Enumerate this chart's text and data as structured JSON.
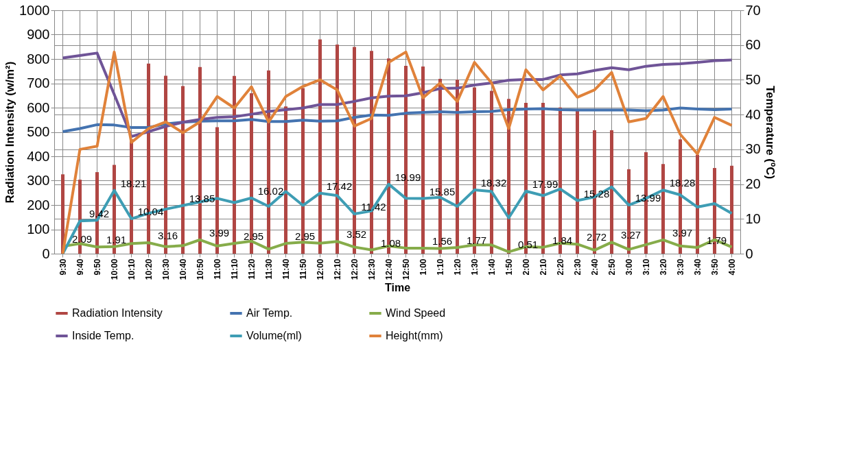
{
  "chart_data": {
    "type": "bar",
    "xlabel": "Time",
    "ylabel": "Radiation Intensity (w/m²)",
    "y2label": "Temperature (ºC)",
    "categories": [
      "9:30",
      "9:40",
      "9:50",
      "10:00",
      "10:10",
      "10:20",
      "10:30",
      "10:40",
      "10:50",
      "11:00",
      "11:10",
      "11:20",
      "11:30",
      "11:40",
      "11:50",
      "12:00",
      "12:10",
      "12:20",
      "12:30",
      "12:40",
      "12:50",
      "1:00",
      "1:10",
      "1:20",
      "1:30",
      "1:40",
      "1:50",
      "2:00",
      "2:10",
      "2:20",
      "2:30",
      "2:40",
      "2:50",
      "3:00",
      "3:10",
      "3:20",
      "3:30",
      "3:40",
      "3:50",
      "4:00"
    ],
    "ylim": [
      0,
      1000
    ],
    "yticks": [
      0,
      100,
      200,
      300,
      400,
      500,
      600,
      700,
      800,
      900,
      1000
    ],
    "y2lim": [
      0,
      70
    ],
    "y2ticks": [
      0,
      10,
      20,
      30,
      40,
      50,
      60,
      70
    ],
    "grid": true,
    "legend": "bottom",
    "series": [
      {
        "name": "Radiation Intensity",
        "type": "bar",
        "color": "#b04643",
        "values": [
          326,
          304,
          335,
          365,
          470,
          781,
          731,
          689,
          767,
          520,
          730,
          659,
          753,
          605,
          680,
          880,
          859,
          849,
          833,
          802,
          772,
          769,
          718,
          715,
          683,
          669,
          636,
          620,
          620,
          601,
          589,
          507,
          507,
          347,
          417,
          368,
          470,
          406,
          352,
          361
        ]
      },
      {
        "name": "Air Temp.",
        "type": "line",
        "axis": "y2",
        "color": "#4473b0",
        "values": [
          35.1,
          36.0,
          37.1,
          37.0,
          36.3,
          36.3,
          37.3,
          37.8,
          38.1,
          38.2,
          38.2,
          38.6,
          38.0,
          38.0,
          38.4,
          38.1,
          38.2,
          39.2,
          39.9,
          39.8,
          40.4,
          40.6,
          40.8,
          40.6,
          40.8,
          40.9,
          41.4,
          41.6,
          41.7,
          41.4,
          41.3,
          41.3,
          41.3,
          41.3,
          41.1,
          41.3,
          41.9,
          41.6,
          41.4,
          41.6
        ]
      },
      {
        "name": "Wind Speed",
        "type": "line",
        "axis": "y2",
        "color": "#86ac4a",
        "values": [
          2.09,
          2.9,
          1.91,
          2.0,
          2.9,
          3.16,
          2.0,
          2.3,
          3.99,
          2.2,
          2.95,
          3.6,
          1.3,
          2.95,
          3.3,
          3.0,
          3.52,
          1.9,
          1.08,
          2.2,
          1.6,
          1.56,
          1.5,
          1.77,
          2.5,
          2.5,
          0.51,
          2.0,
          1.84,
          3.0,
          2.72,
          1.0,
          3.27,
          1.2,
          2.6,
          3.97,
          2.2,
          1.79,
          4.0,
          1.9
        ],
        "value_labels": [
          "2.09",
          null,
          "1.91",
          null,
          null,
          "3.16",
          null,
          null,
          "3.99",
          null,
          "2.95",
          null,
          null,
          "2.95",
          null,
          null,
          "3.52",
          null,
          "1.08",
          null,
          null,
          "1.56",
          null,
          "1.77",
          null,
          null,
          "0.51",
          null,
          "1.84",
          null,
          "2.72",
          null,
          "3.27",
          null,
          null,
          "3.97",
          null,
          "1.79",
          null,
          null
        ]
      },
      {
        "name": "Inside Temp.",
        "type": "line",
        "axis": "y2",
        "color": "#6f5497",
        "values": [
          56.3,
          57.0,
          57.7,
          45.8,
          33.7,
          35.1,
          36.6,
          37.8,
          38.6,
          39.2,
          39.4,
          40.1,
          40.9,
          41.4,
          41.9,
          42.9,
          42.9,
          43.8,
          44.8,
          45.3,
          45.4,
          46.3,
          47.5,
          47.6,
          48.5,
          49.1,
          49.9,
          50.1,
          50.1,
          51.4,
          51.7,
          52.7,
          53.5,
          52.9,
          53.9,
          54.4,
          54.6,
          55.0,
          55.5,
          55.7
        ]
      },
      {
        "name": "Volume(ml)",
        "type": "line",
        "axis": "y2",
        "color": "#3e9db4",
        "values": [
          0,
          9.42,
          9.6,
          18.21,
          10.04,
          11.6,
          12.8,
          13.85,
          14.9,
          15.9,
          14.7,
          16.02,
          13.6,
          17.9,
          13.9,
          17.42,
          16.7,
          11.42,
          12.3,
          19.99,
          15.9,
          15.85,
          16.2,
          13.6,
          18.32,
          17.9,
          10.3,
          17.99,
          16.7,
          18.6,
          15.28,
          16.3,
          19.2,
          13.99,
          15.9,
          18.28,
          16.9,
          13.4,
          14.4,
          11.6
        ],
        "value_labels": [
          null,
          "9.42",
          null,
          "18.21",
          "10.04",
          null,
          null,
          "13.85",
          null,
          null,
          null,
          "16.02",
          null,
          null,
          null,
          "17.42",
          null,
          "11.42",
          null,
          "19.99",
          null,
          "15.85",
          null,
          null,
          "18.32",
          null,
          null,
          "17.99",
          null,
          null,
          "15.28",
          null,
          null,
          "13.99",
          null,
          "18.28",
          null,
          null,
          null,
          null
        ]
      },
      {
        "name": "Height(mm)",
        "type": "line",
        "axis": "y2",
        "color": "#e0823a",
        "values": [
          0,
          30.0,
          30.9,
          58.0,
          32.0,
          36.0,
          37.9,
          34.8,
          37.9,
          45.2,
          41.9,
          48.0,
          37.9,
          45.2,
          48.1,
          50.0,
          47.1,
          36.7,
          38.9,
          55.0,
          58.0,
          44.8,
          49.1,
          43.8,
          55.0,
          49.1,
          36.0,
          52.9,
          47.1,
          51.1,
          45.0,
          47.1,
          52.1,
          37.9,
          38.9,
          45.2,
          34.3,
          28.7,
          39.2,
          36.9
        ]
      }
    ]
  }
}
